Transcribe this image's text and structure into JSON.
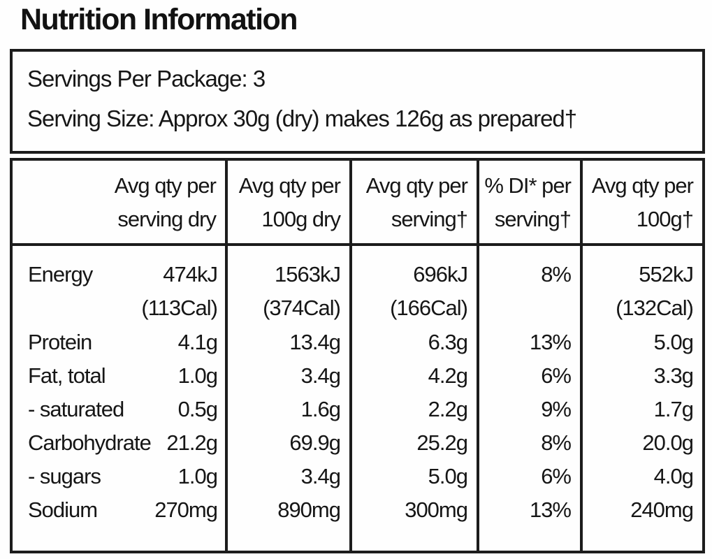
{
  "title": "Nutrition Information",
  "servings": {
    "per_package": "Servings Per Package: 3",
    "serving_size": "Serving Size: Approx 30g (dry) makes 126g as prepared†"
  },
  "table": {
    "headers": [
      "Avg qty per\nserving dry",
      "Avg qty per\n100g dry",
      "Avg qty per\nserving†",
      "% DI* per\nserving†",
      "Avg qty per\n100g†"
    ],
    "rows": [
      {
        "name": "Energy",
        "values": [
          "474kJ\n(113Cal)",
          "1563kJ\n(374Cal)",
          "696kJ\n(166Cal)",
          "8%",
          "552kJ\n(132Cal)"
        ]
      },
      {
        "name": "Protein",
        "values": [
          "4.1g",
          "13.4g",
          "6.3g",
          "13%",
          "5.0g"
        ]
      },
      {
        "name": "Fat, total",
        "values": [
          "1.0g",
          "3.4g",
          "4.2g",
          "6%",
          "3.3g"
        ]
      },
      {
        "name": "- saturated",
        "values": [
          "0.5g",
          "1.6g",
          "2.2g",
          "9%",
          "1.7g"
        ]
      },
      {
        "name": "Carbohydrate",
        "values": [
          "21.2g",
          "69.9g",
          "25.2g",
          "8%",
          "20.0g"
        ]
      },
      {
        "name": "- sugars",
        "values": [
          "1.0g",
          "3.4g",
          "5.0g",
          "6%",
          "4.0g"
        ]
      },
      {
        "name": "Sodium",
        "values": [
          "270mg",
          "890mg",
          "300mg",
          "13%",
          "240mg"
        ]
      }
    ]
  },
  "colors": {
    "border": "#1c1c1c",
    "text": "#161616",
    "background": "#fefefe"
  }
}
